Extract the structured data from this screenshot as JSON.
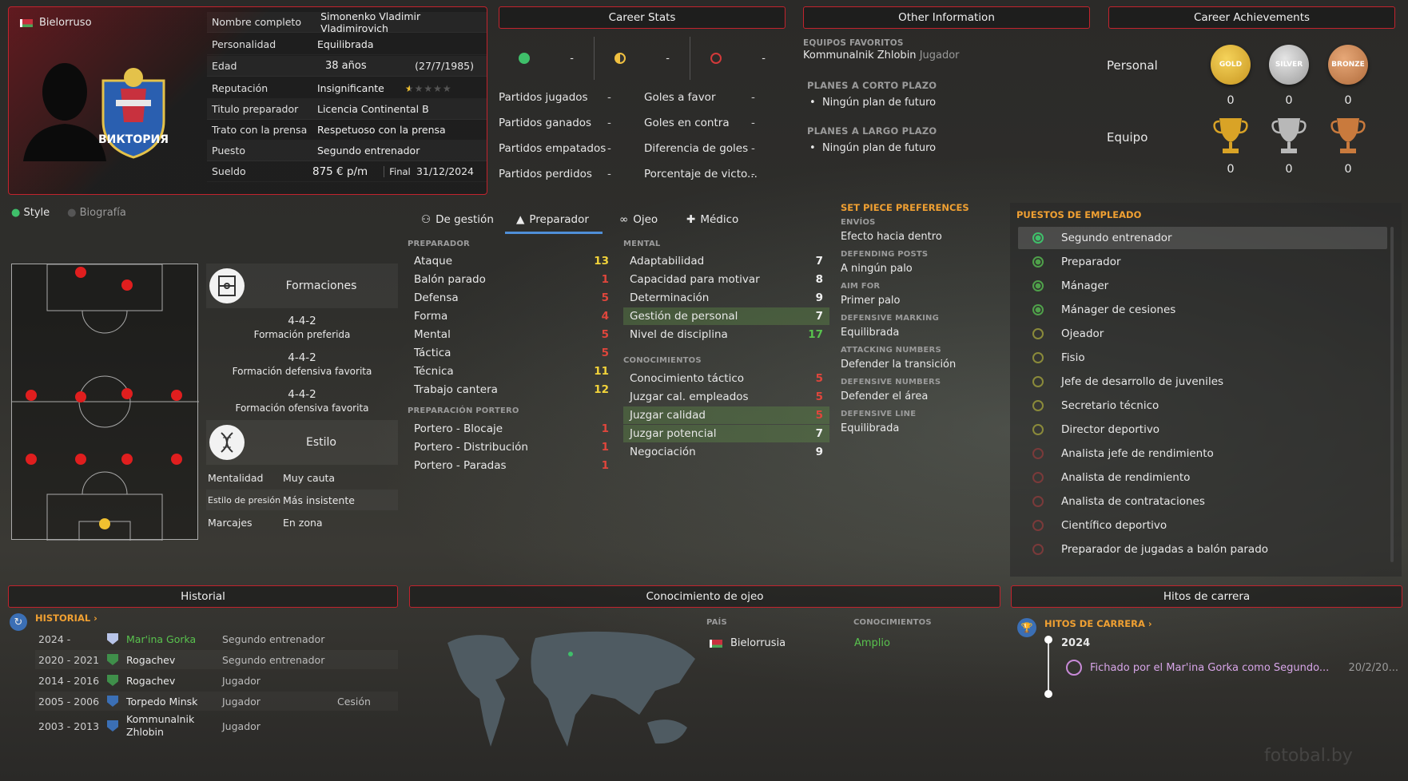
{
  "profile": {
    "nationality": "Bielorruso",
    "club_badge_text": "ВИКТОРИЯ",
    "rows": [
      {
        "key": "Nombre completo",
        "value": "Simonenko Vladimir Vladimirovich"
      },
      {
        "key": "Personalidad",
        "value": "Equilibrada"
      },
      {
        "key": "Edad",
        "value": "38 años",
        "extra": "(27/7/1985)"
      },
      {
        "key": "Reputación",
        "value": "Insignificante"
      },
      {
        "key": "Titulo preparador",
        "value": "Licencia Continental B"
      },
      {
        "key": "Trato con la prensa",
        "value": "Respetuoso con la prensa"
      },
      {
        "key": "Puesto",
        "value": "Segundo entrenador"
      },
      {
        "key": "Sueldo",
        "value": "875 € p/m",
        "extra_label": "Final",
        "extra": "31/12/2024"
      }
    ],
    "reputation_stars": 0.5,
    "reputation_max": 5
  },
  "career_stats": {
    "title": "Career Stats",
    "summary": [
      "-",
      "-",
      "-"
    ],
    "left": [
      {
        "label": "Partidos jugados",
        "value": "-"
      },
      {
        "label": "Partidos ganados",
        "value": "-"
      },
      {
        "label": "Partidos empatados",
        "value": "-"
      },
      {
        "label": "Partidos perdidos",
        "value": "-"
      }
    ],
    "right": [
      {
        "label": "Goles a favor",
        "value": "-"
      },
      {
        "label": "Goles en contra",
        "value": "-"
      },
      {
        "label": "Diferencia de goles",
        "value": "-"
      },
      {
        "label": "Porcentaje de victo...",
        "value": "-"
      }
    ]
  },
  "other_info": {
    "title": "Other Information",
    "fav_teams_label": "EQUIPOS FAVORITOS",
    "fav_team": "Kommunalnik Zhlobin",
    "fav_team_role": "Jugador",
    "short_label": "PLANES A CORTO PLAZO",
    "short_value": "Ningún plan de futuro",
    "long_label": "PLANES A LARGO PLAZO",
    "long_value": "Ningún plan de futuro"
  },
  "achievements": {
    "title": "Career Achievements",
    "personal_label": "Personal",
    "team_label": "Equipo",
    "medals": [
      "GOLD",
      "SILVER",
      "BRONZE"
    ],
    "personal_counts": [
      "0",
      "0",
      "0"
    ],
    "team_counts": [
      "0",
      "0",
      "0"
    ]
  },
  "style_tabs": {
    "style": "Style",
    "bio": "Biografía"
  },
  "formations": {
    "title": "Formaciones",
    "items": [
      {
        "value": "4-4-2",
        "label": "Formación preferida"
      },
      {
        "value": "4-4-2",
        "label": "Formación defensiva favorita"
      },
      {
        "value": "4-4-2",
        "label": "Formación ofensiva favorita"
      }
    ]
  },
  "estilo": {
    "title": "Estilo",
    "rows": [
      {
        "key": "Mentalidad",
        "value": "Muy cauta"
      },
      {
        "key": "Estilo de presión",
        "value": "Más insistente"
      },
      {
        "key": "Marcajes",
        "value": "En zona"
      }
    ]
  },
  "tabs": [
    "De gestión",
    "Preparador",
    "Ojeo",
    "Médico"
  ],
  "coaching": {
    "header": "PREPARADOR",
    "items": [
      {
        "label": "Ataque",
        "value": "13",
        "color": "#f2d33a"
      },
      {
        "label": "Balón parado",
        "value": "1",
        "color": "#e0463c"
      },
      {
        "label": "Defensa",
        "value": "5",
        "color": "#e0463c"
      },
      {
        "label": "Forma",
        "value": "4",
        "color": "#e0463c"
      },
      {
        "label": "Mental",
        "value": "5",
        "color": "#e0463c"
      },
      {
        "label": "Táctica",
        "value": "5",
        "color": "#e0463c"
      },
      {
        "label": "Técnica",
        "value": "11",
        "color": "#f2d33a"
      },
      {
        "label": "Trabajo cantera",
        "value": "12",
        "color": "#f2d33a"
      }
    ],
    "gk_header": "PREPARACIÓN PORTERO",
    "gk_items": [
      {
        "label": "Portero - Blocaje",
        "value": "1",
        "color": "#e0463c"
      },
      {
        "label": "Portero - Distribución",
        "value": "1",
        "color": "#e0463c"
      },
      {
        "label": "Portero - Paradas",
        "value": "1",
        "color": "#e0463c"
      }
    ]
  },
  "mental": {
    "header": "MENTAL",
    "items": [
      {
        "label": "Adaptabilidad",
        "value": "7",
        "color": "#f0f0f0"
      },
      {
        "label": "Capacidad para motivar",
        "value": "8",
        "color": "#f0f0f0"
      },
      {
        "label": "Determinación",
        "value": "9",
        "color": "#f0f0f0"
      },
      {
        "label": "Gestión de personal",
        "value": "7",
        "color": "#f0f0f0",
        "hi": true
      },
      {
        "label": "Nivel de disciplina",
        "value": "17",
        "color": "#59c24e"
      }
    ],
    "know_header": "CONOCIMIENTOS",
    "know_items": [
      {
        "label": "Conocimiento táctico",
        "value": "5",
        "color": "#e0463c"
      },
      {
        "label": "Juzgar cal. empleados",
        "value": "5",
        "color": "#e0463c"
      },
      {
        "label": "Juzgar calidad",
        "value": "5",
        "color": "#e0463c",
        "hi": true
      },
      {
        "label": "Juzgar potencial",
        "value": "7",
        "color": "#f0f0f0",
        "hi": true
      },
      {
        "label": "Negociación",
        "value": "9",
        "color": "#f0f0f0"
      }
    ]
  },
  "set_piece": {
    "title": "SET PIECE PREFERENCES",
    "groups": [
      {
        "label": "ENVÍOS",
        "value": "Efecto hacia dentro"
      },
      {
        "label": "DEFENDING POSTS",
        "value": "A ningún palo"
      },
      {
        "label": "AIM FOR",
        "value": "Primer palo"
      },
      {
        "label": "DEFENSIVE MARKING",
        "value": "Equilibrada"
      },
      {
        "label": "ATTACKING NUMBERS",
        "value": "Defender la transición"
      },
      {
        "label": "DEFENSIVE NUMBERS",
        "value": "Defender el área"
      },
      {
        "label": "DEFENSIVE LINE",
        "value": "Equilibrada"
      }
    ]
  },
  "positions": {
    "title": "PUESTOS DE EMPLEADO",
    "items": [
      {
        "label": "Segundo entrenador",
        "level": 5
      },
      {
        "label": "Preparador",
        "level": 4
      },
      {
        "label": "Mánager",
        "level": 4
      },
      {
        "label": "Mánager de cesiones",
        "level": 4
      },
      {
        "label": "Ojeador",
        "level": 3
      },
      {
        "label": "Fisio",
        "level": 3
      },
      {
        "label": "Jefe de desarrollo de juveniles",
        "level": 3
      },
      {
        "label": "Secretario técnico",
        "level": 3
      },
      {
        "label": "Director deportivo",
        "level": 3
      },
      {
        "label": "Analista jefe de rendimiento",
        "level": 2
      },
      {
        "label": "Analista de rendimiento",
        "level": 2
      },
      {
        "label": "Analista de contrataciones",
        "level": 2
      },
      {
        "label": "Científico deportivo",
        "level": 2
      },
      {
        "label": "Preparador de jugadas a balón parado",
        "level": 2
      }
    ]
  },
  "historial": {
    "title": "Historial",
    "link": "HISTORIAL",
    "rows": [
      {
        "years": "2024 -",
        "club": "Mar'ina Gorka",
        "role": "Segundo entrenador",
        "note": "",
        "current": true
      },
      {
        "years": "2020 - 2021",
        "club": "Rogachev",
        "role": "Segundo entrenador",
        "note": ""
      },
      {
        "years": "2014 - 2016",
        "club": "Rogachev",
        "role": "Jugador",
        "note": ""
      },
      {
        "years": "2005 - 2006",
        "club": "Torpedo Minsk",
        "role": "Jugador",
        "note": "Cesión"
      },
      {
        "years": "2003 - 2013",
        "club": "Kommunalnik Zhlobin",
        "role": "Jugador",
        "note": ""
      }
    ]
  },
  "scouting": {
    "title": "Conocimiento de ojeo",
    "country_label": "PAÍS",
    "knowledge_label": "CONOCIMIENTOS",
    "country": "Bielorrusia",
    "level": "Amplio"
  },
  "milestones": {
    "title": "Hitos de carrera",
    "link": "HITOS DE CARRERA",
    "year": "2024",
    "text": "Fichado por el Mar'ina Gorka como Segundo...",
    "date": "20/2/20..."
  },
  "watermark": "fotobal.by"
}
